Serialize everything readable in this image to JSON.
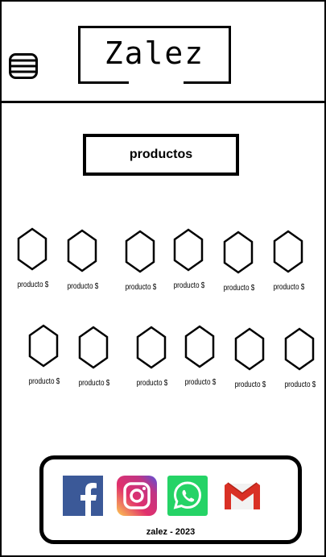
{
  "header": {
    "logo": "Zalez",
    "menu_icon": "hamburger-menu-icon"
  },
  "section": {
    "title": "productos"
  },
  "products": [
    {
      "label": "producto $"
    },
    {
      "label": "producto $"
    },
    {
      "label": "producto $"
    },
    {
      "label": "producto $"
    },
    {
      "label": "producto $"
    },
    {
      "label": "producto $"
    },
    {
      "label": "producto $"
    },
    {
      "label": "producto $"
    },
    {
      "label": "producto $"
    },
    {
      "label": "producto $"
    },
    {
      "label": "producto $"
    },
    {
      "label": "producto $"
    }
  ],
  "footer": {
    "social_icons": [
      "facebook-icon",
      "instagram-icon",
      "whatsapp-icon",
      "gmail-icon"
    ],
    "text": "zalez - 2023",
    "colors": {
      "facebook": "#3b5998",
      "whatsapp": "#25d366",
      "gmail_red": "#d93025"
    }
  }
}
